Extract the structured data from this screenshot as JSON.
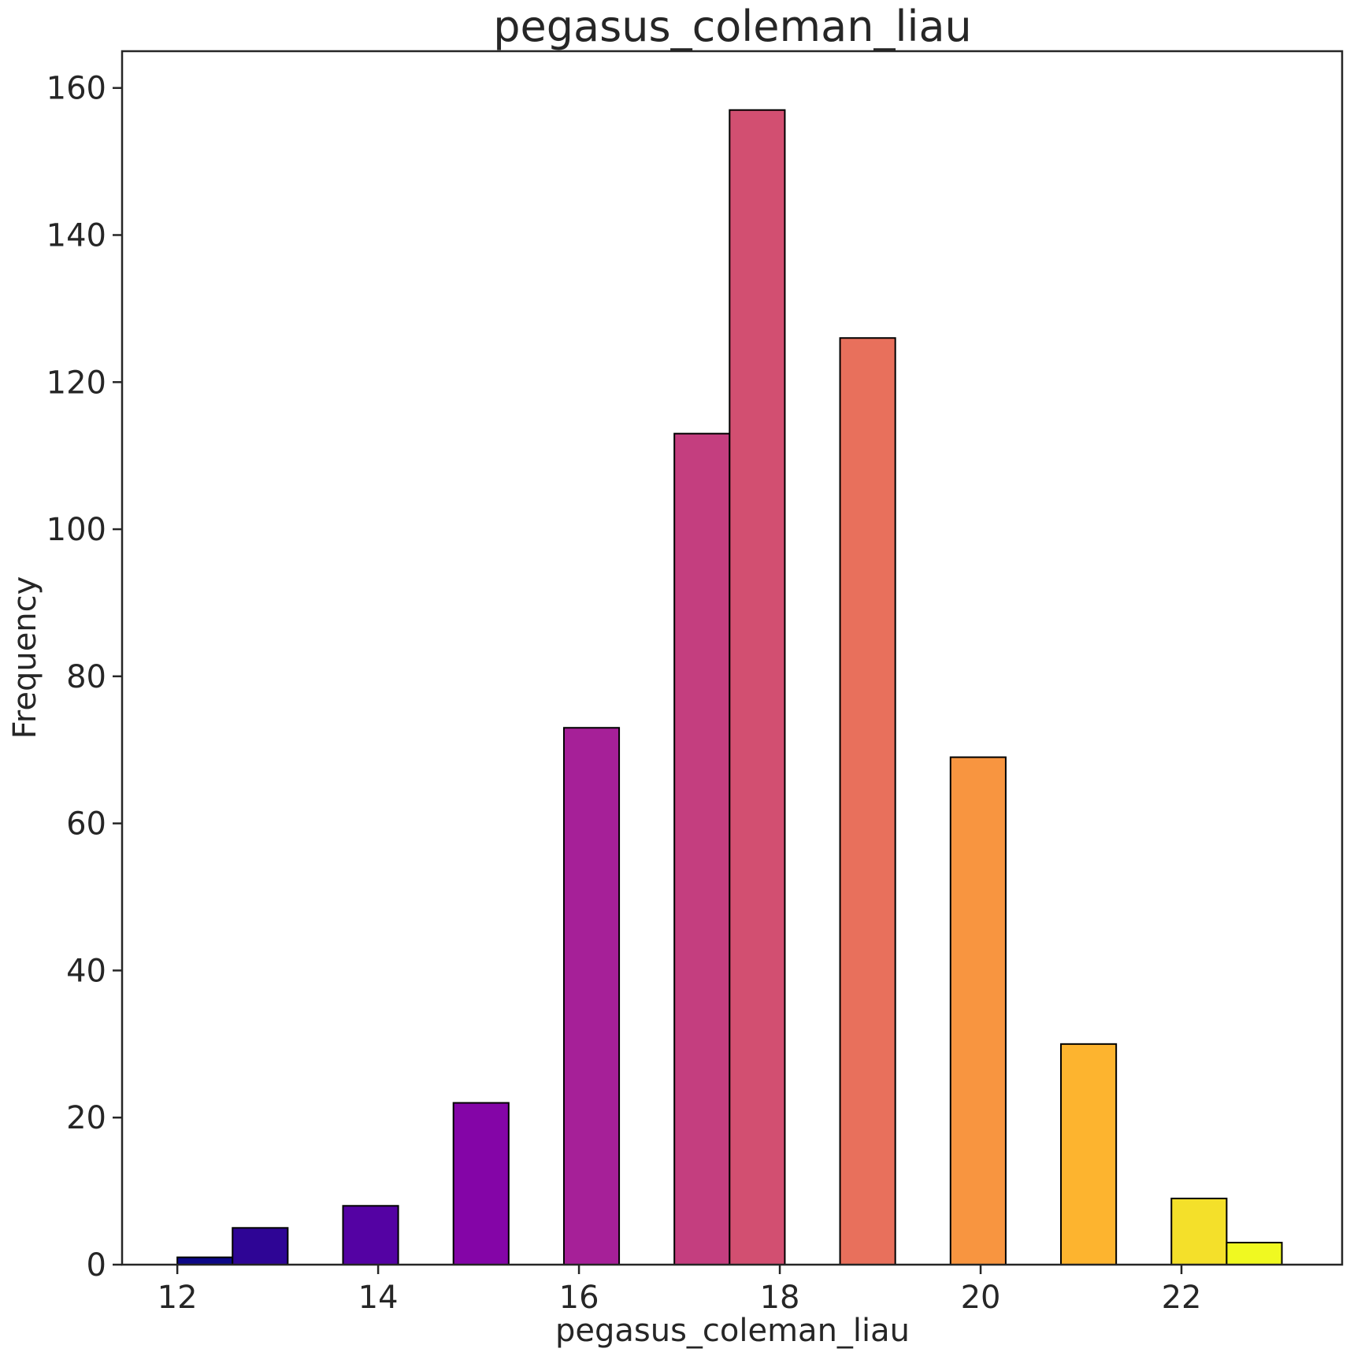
{
  "chart_data": {
    "type": "bar",
    "title": "pegasus_coleman_liau",
    "xlabel": "pegasus_coleman_liau",
    "ylabel": "Frequency",
    "xlim": [
      11.45,
      23.6
    ],
    "ylim": [
      0,
      165
    ],
    "xticks": [
      12,
      14,
      16,
      18,
      20,
      22
    ],
    "yticks": [
      0,
      20,
      40,
      60,
      80,
      100,
      120,
      140,
      160
    ],
    "grid": false,
    "bins": [
      {
        "x0": 12.0,
        "x1": 12.55,
        "value": 1,
        "color": "#0d0887"
      },
      {
        "x0": 12.55,
        "x1": 13.1,
        "value": 5,
        "color": "#2e0595"
      },
      {
        "x0": 13.65,
        "x1": 14.2,
        "value": 8,
        "color": "#5402a3"
      },
      {
        "x0": 14.75,
        "x1": 15.3,
        "value": 22,
        "color": "#8405a7"
      },
      {
        "x0": 15.85,
        "x1": 16.4,
        "value": 73,
        "color": "#a62098"
      },
      {
        "x0": 16.95,
        "x1": 17.5,
        "value": 113,
        "color": "#c43e7f"
      },
      {
        "x0": 17.5,
        "x1": 18.05,
        "value": 157,
        "color": "#d24f71"
      },
      {
        "x0": 18.6,
        "x1": 19.15,
        "value": 126,
        "color": "#e8705c"
      },
      {
        "x0": 19.7,
        "x1": 20.25,
        "value": 69,
        "color": "#f89540"
      },
      {
        "x0": 20.8,
        "x1": 21.35,
        "value": 30,
        "color": "#fdb42f"
      },
      {
        "x0": 21.9,
        "x1": 22.45,
        "value": 9,
        "color": "#f4e02a"
      },
      {
        "x0": 22.45,
        "x1": 23.0,
        "value": 3,
        "color": "#f0f921"
      }
    ]
  }
}
